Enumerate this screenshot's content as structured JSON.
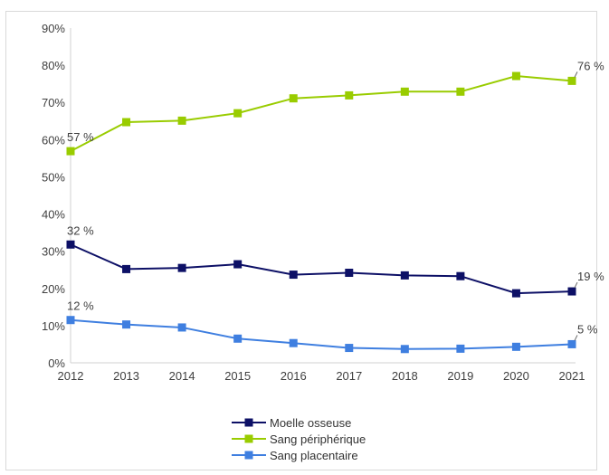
{
  "chart_data": {
    "type": "line",
    "title": "",
    "xlabel": "",
    "ylabel": "",
    "categories": [
      "2012",
      "2013",
      "2014",
      "2015",
      "2016",
      "2017",
      "2018",
      "2019",
      "2020",
      "2021"
    ],
    "ylim": [
      0,
      90
    ],
    "yticks": [
      "0%",
      "10%",
      "20%",
      "30%",
      "40%",
      "50%",
      "60%",
      "70%",
      "80%",
      "90%"
    ],
    "grid": false,
    "legend_position": "bottom",
    "series": [
      {
        "name": "Moelle osseuse",
        "color": "#0d1066",
        "values": [
          31.8,
          25.2,
          25.5,
          26.5,
          23.7,
          24.2,
          23.5,
          23.3,
          18.7,
          19.2
        ],
        "labels": [
          {
            "index": 0,
            "text": "32 %"
          },
          {
            "index": 9,
            "text": "19 %"
          }
        ]
      },
      {
        "name": "Sang périphérique",
        "color": "#99cc00",
        "values": [
          56.9,
          64.7,
          65.1,
          67.1,
          71.1,
          71.9,
          72.9,
          72.9,
          77.1,
          75.8
        ],
        "labels": [
          {
            "index": 0,
            "text": "57 %"
          },
          {
            "index": 9,
            "text": "76 %"
          }
        ]
      },
      {
        "name": "Sang placentaire",
        "color": "#3f7fe0",
        "values": [
          11.5,
          10.3,
          9.5,
          6.5,
          5.3,
          4.0,
          3.7,
          3.8,
          4.3,
          5.0
        ],
        "labels": [
          {
            "index": 0,
            "text": "12 %"
          },
          {
            "index": 9,
            "text": "5 %"
          }
        ]
      }
    ]
  }
}
